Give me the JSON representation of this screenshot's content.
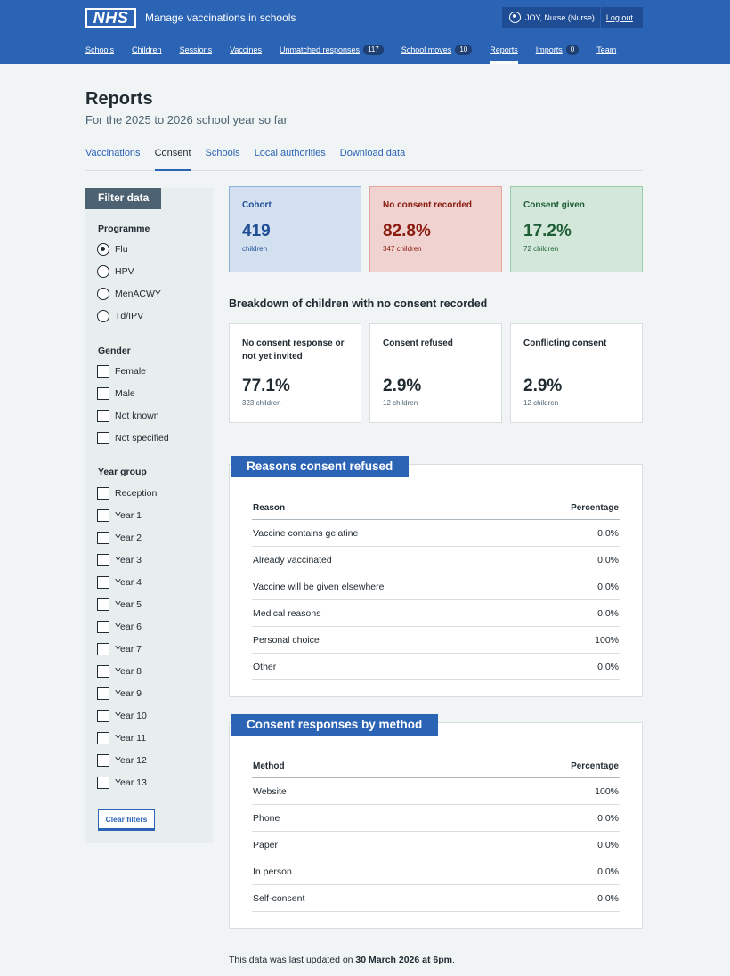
{
  "header": {
    "logo": "NHS",
    "service_name": "Manage vaccinations in schools",
    "user": "JOY, Nurse (Nurse)",
    "logout": "Log out",
    "nav": [
      {
        "label": "Schools",
        "count": null
      },
      {
        "label": "Children",
        "count": null
      },
      {
        "label": "Sessions",
        "count": null
      },
      {
        "label": "Vaccines",
        "count": null
      },
      {
        "label": "Unmatched responses",
        "count": "117"
      },
      {
        "label": "School moves",
        "count": "10"
      },
      {
        "label": "Reports",
        "count": null,
        "active": true
      },
      {
        "label": "Imports",
        "count": "0"
      },
      {
        "label": "Team",
        "count": null
      }
    ]
  },
  "page": {
    "title": "Reports",
    "subtitle": "For the 2025 to 2026 school year so far",
    "tabs": [
      "Vaccinations",
      "Consent",
      "Schools",
      "Local authorities",
      "Download data"
    ],
    "active_tab": "Consent"
  },
  "filter": {
    "title": "Filter data",
    "programme_title": "Programme",
    "programmes": [
      "Flu",
      "HPV",
      "MenACWY",
      "Td/IPV"
    ],
    "programme_selected": "Flu",
    "gender_title": "Gender",
    "genders": [
      "Female",
      "Male",
      "Not known",
      "Not specified"
    ],
    "year_title": "Year group",
    "years": [
      "Reception",
      "Year 1",
      "Year 2",
      "Year 3",
      "Year 4",
      "Year 5",
      "Year 6",
      "Year 7",
      "Year 8",
      "Year 9",
      "Year 10",
      "Year 11",
      "Year 12",
      "Year 13"
    ],
    "clear": "Clear filters"
  },
  "stats": {
    "cohort": {
      "label": "Cohort",
      "value": "419",
      "sub": "children"
    },
    "no_consent": {
      "label": "No consent recorded",
      "value": "82.8%",
      "sub": "347 children"
    },
    "given": {
      "label": "Consent given",
      "value": "17.2%",
      "sub": "72 children"
    }
  },
  "breakdown": {
    "heading": "Breakdown of children with no consent recorded",
    "cards": [
      {
        "label": "No consent response or not yet invited",
        "value": "77.1%",
        "sub": "323 children"
      },
      {
        "label": "Consent refused",
        "value": "2.9%",
        "sub": "12 children"
      },
      {
        "label": "Conflicting consent",
        "value": "2.9%",
        "sub": "12 children"
      }
    ]
  },
  "refused": {
    "heading": "Reasons consent refused",
    "col1": "Reason",
    "col2": "Percentage",
    "rows": [
      [
        "Vaccine contains gelatine",
        "0.0%"
      ],
      [
        "Already vaccinated",
        "0.0%"
      ],
      [
        "Vaccine will be given elsewhere",
        "0.0%"
      ],
      [
        "Medical reasons",
        "0.0%"
      ],
      [
        "Personal choice",
        "100%"
      ],
      [
        "Other",
        "0.0%"
      ]
    ]
  },
  "method": {
    "heading": "Consent responses by method",
    "col1": "Method",
    "col2": "Percentage",
    "rows": [
      [
        "Website",
        "100%"
      ],
      [
        "Phone",
        "0.0%"
      ],
      [
        "Paper",
        "0.0%"
      ],
      [
        "In person",
        "0.0%"
      ],
      [
        "Self-consent",
        "0.0%"
      ]
    ]
  },
  "footer": {
    "prefix": "This data was last updated on ",
    "date": "30 March 2026 at 6pm",
    "suffix": "."
  }
}
